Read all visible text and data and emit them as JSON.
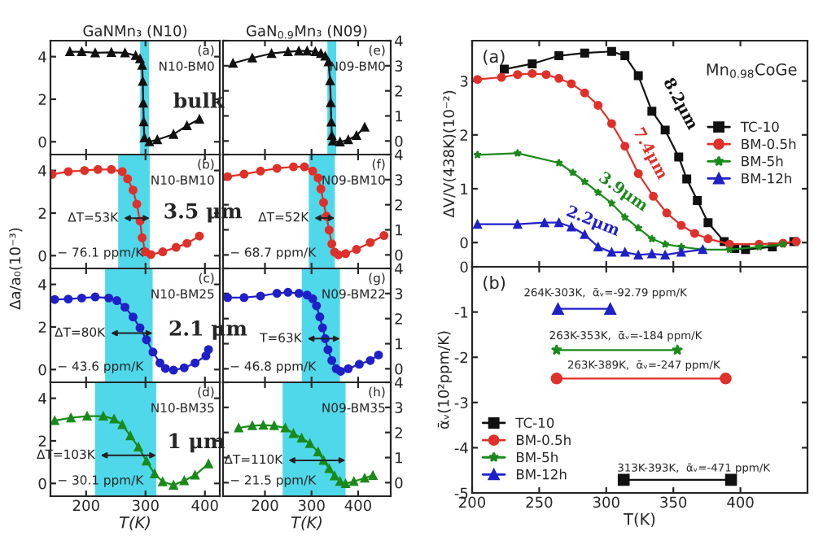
{
  "chart_data": [
    {
      "type": "line",
      "title": "GaNMn₃ (N10)",
      "x": [
        172.7,
        192.6,
        215.3,
        242.5,
        265.4,
        283.4,
        290.7,
        294.3,
        295.4,
        296.2,
        297,
        298.1,
        306.3,
        319.9,
        347.1,
        369.8,
        390.7
      ],
      "series": [
        {
          "color": "#111111",
          "values": [
            4.23,
            4.23,
            4.18,
            4.2,
            4.18,
            4.05,
            3.9,
            3.59,
            2.84,
            1.82,
            0.94,
            0.18,
            0,
            0.1,
            0.35,
            0.76,
            1.06
          ]
        }
      ],
      "marker": "triangle",
      "xlim": [
        140,
        425
      ],
      "ylim": [
        -0.6,
        4.75
      ],
      "xticks": [
        200,
        300,
        400
      ],
      "yticks": [
        0,
        2,
        4
      ],
      "tick_labels": "y",
      "bands": [
        {
          "axis": "x",
          "from": 291,
          "to": 306,
          "color": "#4fd8ea"
        }
      ],
      "annotations": [
        "(a)",
        "N10-BM0",
        "bulk"
      ]
    },
    {
      "type": "line",
      "ylabel": "Δa/a₀(10⁻³)",
      "x": [
        142.8,
        170,
        197.3,
        219.9,
        242.5,
        260.8,
        269.8,
        279,
        285.3,
        290.7,
        294.3,
        299.7,
        309,
        328.9,
        351.5,
        369.8,
        390.7
      ],
      "series": [
        {
          "color": "#e0302a",
          "values": [
            3.82,
            3.95,
            4.0,
            4.05,
            4.05,
            3.95,
            3.61,
            3.08,
            2.42,
            1.63,
            0.84,
            0.18,
            0.05,
            0.18,
            0.39,
            0.58,
            0.92
          ]
        }
      ],
      "marker": "circle",
      "xlim": [
        140,
        425
      ],
      "ylim": [
        -0.6,
        4.75
      ],
      "xticks": [
        200,
        300,
        400
      ],
      "yticks": [
        0,
        2,
        4
      ],
      "tick_labels": "y",
      "bands": [
        {
          "axis": "x",
          "from": 254,
          "to": 307,
          "color": "#4fd8ea"
        }
      ],
      "annotations": [
        "(b)",
        "N10-BM10",
        "− 76.1 ppm/K",
        "3.5 μm",
        {
          "text": "ΔT=53K",
          "x": 254,
          "y": 1.76
        }
      ]
    },
    {
      "type": "line",
      "x": [
        147.1,
        170,
        192.6,
        215.3,
        238.1,
        251.8,
        265.4,
        279,
        290.7,
        301.6,
        312.5,
        324.3,
        333.5,
        347.1,
        365.1,
        383.4,
        401.6,
        406
      ],
      "series": [
        {
          "color": "#2020c8",
          "values": [
            3.29,
            3.31,
            3.36,
            3.41,
            3.36,
            3.24,
            2.93,
            2.47,
            1.96,
            1.4,
            0.82,
            0.31,
            0.05,
            -0.03,
            0.08,
            0.31,
            0.64,
            0.94
          ]
        }
      ],
      "marker": "circle",
      "xlim": [
        140,
        425
      ],
      "ylim": [
        -0.6,
        4.75
      ],
      "xticks": [
        200,
        300,
        400
      ],
      "yticks": [
        0,
        2,
        4
      ],
      "tick_labels": "y",
      "bands": [
        {
          "axis": "x",
          "from": 232,
          "to": 312,
          "color": "#4fd8ea"
        }
      ],
      "annotations": [
        "(c)",
        "N10-BM25",
        "− 43.6 ppm/K",
        "2.1 μm",
        {
          "text": "ΔT=80K",
          "x": 232,
          "y": 1.71
        }
      ]
    },
    {
      "type": "line",
      "xlabel": "T(K)",
      "x": [
        147.1,
        174.5,
        201.7,
        228.9,
        247.1,
        260.8,
        274.4,
        288,
        301.6,
        315.3,
        328.9,
        347.1,
        365.1,
        383.4,
        406
      ],
      "series": [
        {
          "color": "#1a8a1a",
          "values": [
            2.95,
            3.08,
            3.16,
            3.16,
            3.03,
            2.76,
            2.24,
            1.71,
            1.05,
            0.45,
            0.08,
            -0.08,
            0.13,
            0.39,
            0.92
          ]
        }
      ],
      "marker": "triangle",
      "xlim": [
        140,
        425
      ],
      "ylim": [
        -0.6,
        4.75
      ],
      "xticks": [
        200,
        300,
        400
      ],
      "yticks": [
        0,
        2,
        4
      ],
      "bands": [
        {
          "axis": "x",
          "from": 215,
          "to": 318,
          "color": "#4fd8ea"
        }
      ],
      "annotations": [
        "(d)",
        "N10-BM35",
        "− 30.1 ppm/K",
        "1 μm",
        {
          "text": "ΔT=103K",
          "x": 215,
          "y": 1.32
        }
      ]
    },
    {
      "type": "line",
      "title": "GaN$_{0.9}$Mn₃ (N09)",
      "x": [
        131.4,
        172.8,
        214.1,
        249.5,
        272.8,
        290.5,
        308.1,
        320.1,
        329.3,
        336.4,
        339.9,
        341.3,
        342.4,
        343.5,
        345.9,
        361.1,
        378.8,
        396.5,
        414.1
      ],
      "series": [
        {
          "color": "#111111",
          "values": [
            3.1,
            3.31,
            3.49,
            3.56,
            3.59,
            3.59,
            3.56,
            3.49,
            3.38,
            3.16,
            2.4,
            1.53,
            0.76,
            0.22,
            0,
            -0.04,
            0.05,
            0.22,
            0.55
          ]
        }
      ],
      "marker": "triangle",
      "xlim": [
        110,
        470
      ],
      "ylim": [
        -0.54,
        4
      ],
      "xticks": [
        200,
        300,
        400
      ],
      "yticks": [
        0,
        1,
        2,
        3,
        4
      ],
      "tick_labels": "y",
      "bands": [
        {
          "axis": "x",
          "from": 334,
          "to": 353,
          "color": "#4fd8ea"
        }
      ],
      "annotations": [
        "(e)",
        "N09-BM0"
      ]
    },
    {
      "type": "line",
      "x": [
        119.8,
        155.1,
        190.5,
        225.8,
        261.1,
        284.8,
        302.5,
        314.1,
        320.1,
        325.8,
        331.8,
        337.8,
        343.5,
        349.5,
        357.6,
        373.1,
        396.5,
        426.1,
        455.5
      ],
      "series": [
        {
          "color": "#e0302a",
          "values": [
            3.12,
            3.22,
            3.34,
            3.45,
            3.51,
            3.51,
            3.34,
            3.07,
            2.63,
            2.09,
            1.54,
            0.99,
            0.44,
            0.11,
            0,
            0.05,
            0.22,
            0.49,
            0.77
          ]
        }
      ],
      "marker": "circle",
      "xlim": [
        110,
        470
      ],
      "ylim": [
        -0.54,
        4
      ],
      "xticks": [
        200,
        300,
        400
      ],
      "yticks": [
        0,
        1,
        2,
        3,
        4
      ],
      "tick_labels": "y",
      "bands": [
        {
          "axis": "x",
          "from": 294,
          "to": 350,
          "color": "#4fd8ea"
        }
      ],
      "annotations": [
        "(f)",
        "N09-BM10",
        "− 68.7 ppm/K",
        {
          "text": "ΔT=52K",
          "x": 294,
          "y": 1.47
        }
      ]
    },
    {
      "type": "line",
      "x": [
        119.8,
        155.1,
        190.5,
        225.8,
        249.5,
        272.8,
        290.5,
        302.5,
        310.6,
        317.7,
        323.7,
        329.3,
        335.3,
        343.5,
        353,
        362.5,
        378.8,
        402.5,
        426.1,
        443.8
      ],
      "series": [
        {
          "color": "#2020c8",
          "values": [
            2.84,
            2.84,
            2.9,
            3.01,
            3.05,
            3.01,
            2.94,
            2.79,
            2.51,
            2.07,
            1.63,
            1.2,
            0.76,
            0.33,
            0,
            -0.1,
            0,
            0.18,
            0.33,
            0.55
          ]
        }
      ],
      "marker": "circle",
      "xlim": [
        110,
        470
      ],
      "ylim": [
        -0.54,
        4
      ],
      "xticks": [
        200,
        300,
        400
      ],
      "yticks": [
        0,
        1,
        2,
        3,
        4
      ],
      "tick_labels": "y",
      "bands": [
        {
          "axis": "x",
          "from": 279,
          "to": 361,
          "color": "#4fd8ea"
        }
      ],
      "annotations": [
        "(g)",
        "N09-BM22",
        "− 46.8 ppm/K",
        {
          "text": "T=63K",
          "x": 279,
          "y": 1.2
        }
      ]
    },
    {
      "type": "line",
      "xlabel": "T(K)",
      "x": [
        143.5,
        172.8,
        196.5,
        219.8,
        243.5,
        261.1,
        278.8,
        296.5,
        314.1,
        325.8,
        337.8,
        349.5,
        361.1,
        373.1,
        390.8,
        414.1,
        431.8
      ],
      "series": [
        {
          "color": "#1a8a1a",
          "values": [
            2.18,
            2.27,
            2.29,
            2.27,
            2.18,
            1.96,
            1.78,
            1.56,
            1.23,
            0.89,
            0.56,
            0.27,
            0.05,
            -0.04,
            0.05,
            0.18,
            0.29
          ]
        }
      ],
      "marker": "triangle",
      "xlim": [
        110,
        470
      ],
      "ylim": [
        -0.54,
        4
      ],
      "xticks": [
        200,
        300,
        400
      ],
      "yticks": [
        0,
        1,
        2,
        3,
        4
      ],
      "bands": [
        {
          "axis": "x",
          "from": 238,
          "to": 373,
          "color": "#4fd8ea"
        }
      ],
      "annotations": [
        "(h)",
        "N09-BM35",
        "− 21.5 ppm/K",
        {
          "text": "ΔT=110K",
          "x": 238,
          "y": 0.89
        }
      ]
    },
    {
      "type": "line",
      "ylabel": "ΔV/V(438K)(10⁻²)",
      "series": [
        {
          "name": "TC-10",
          "color": "#111111",
          "marker": "square",
          "x": [
            224,
            244.8,
            264.7,
            283.9,
            304,
            313.9,
            323.9,
            334,
            343.9,
            354,
            360,
            367.9,
            375.9,
            387.9,
            395.8,
            403.8,
            423.8,
            439.8
          ],
          "values": [
            3.22,
            3.32,
            3.47,
            3.52,
            3.55,
            3.47,
            3.1,
            2.44,
            2.09,
            1.59,
            1.18,
            0.78,
            0.37,
            0.02,
            -0.11,
            -0.13,
            -0.08,
            0.02
          ]
        },
        {
          "name": "BM-0.5h",
          "color": "#e0302a",
          "marker": "circle",
          "x": [
            204,
            221.9,
            233.9,
            244.8,
            255.2,
            264.7,
            274,
            283.9,
            293.9,
            304,
            313.9,
            323.9,
            335.1,
            345.1,
            355.9,
            365.9,
            375.9,
            391.9,
            413.9,
            431.8,
            441.7
          ],
          "values": [
            3.03,
            3.07,
            3.12,
            3.14,
            3.12,
            3.05,
            2.95,
            2.78,
            2.55,
            2.21,
            1.79,
            1.28,
            0.86,
            0.55,
            0.32,
            0.17,
            0.07,
            -0.03,
            -0.03,
            -0.01,
            0.02
          ]
        },
        {
          "name": "BM-5h",
          "color": "#1a8a1a",
          "marker": "star",
          "x": [
            204,
            233.9,
            264.7,
            275.1,
            283.9,
            293.9,
            304,
            313.9,
            323.9,
            334,
            343.9,
            355.9,
            371.9,
            391.9,
            413.9,
            431.8
          ],
          "values": [
            1.63,
            1.66,
            1.48,
            1.3,
            1.13,
            0.93,
            0.73,
            0.47,
            0.27,
            0.07,
            -0.03,
            -0.08,
            -0.13,
            -0.13,
            -0.08,
            -0.03
          ]
        },
        {
          "name": "BM-12h",
          "color": "#2020c8",
          "marker": "triangle",
          "x": [
            204,
            233.9,
            254,
            264.7,
            274,
            283.9,
            293.9,
            304,
            313.9,
            323.9,
            334,
            343.9,
            355.9,
            371.9
          ],
          "values": [
            0.34,
            0.34,
            0.37,
            0.37,
            0.29,
            0.15,
            -0.08,
            -0.18,
            -0.18,
            -0.23,
            -0.21,
            -0.23,
            -0.18,
            -0.13
          ]
        }
      ],
      "xlim": [
        200,
        450
      ],
      "ylim": [
        -0.45,
        3.75
      ],
      "xticks": [
        200,
        250,
        300,
        350,
        400
      ],
      "yticks": [
        0,
        1,
        2,
        3
      ],
      "tick_labels": "y",
      "legend": "right",
      "annotations": [
        "(a)",
        "Mn$_{0.98}$CoGe",
        "8.2μm",
        "7.4μm",
        "3.9μm",
        "2.2μm"
      ]
    },
    {
      "type": "line",
      "xlabel": "T(K)",
      "ylabel": "ᾱᵥ(10²ppm/K)",
      "series": [
        {
          "name": "TC-10",
          "color": "#111111",
          "marker": "square",
          "x": [
            313,
            393
          ],
          "values": [
            -4.71,
            -4.71
          ]
        },
        {
          "name": "BM-0.5h",
          "color": "#e0302a",
          "marker": "circle",
          "x": [
            263,
            389
          ],
          "values": [
            -2.47,
            -2.47
          ]
        },
        {
          "name": "BM-5h",
          "color": "#1a8a1a",
          "marker": "star",
          "x": [
            263,
            353
          ],
          "values": [
            -1.84,
            -1.84
          ]
        },
        {
          "name": "BM-12h",
          "color": "#2020c8",
          "marker": "triangle",
          "x": [
            264,
            303
          ],
          "values": [
            -0.93,
            -0.93
          ]
        }
      ],
      "xlim": [
        200,
        450
      ],
      "ylim": [
        -5,
        0
      ],
      "xticks": [
        200,
        250,
        300,
        350,
        400
      ],
      "yticks": [
        -5,
        -4,
        -3,
        -2,
        -1,
        0
      ],
      "legend": "bottom left",
      "annotations": [
        "(b)",
        "264K-303K,  ᾱᵥ=-92.79 ppm/K",
        "263K-353K,  ᾱᵥ=-184 ppm/K",
        "263K-389K,  ᾱᵥ=-247 ppm/K",
        "313K-393K,  ᾱᵥ=-471 ppm/K"
      ]
    }
  ]
}
